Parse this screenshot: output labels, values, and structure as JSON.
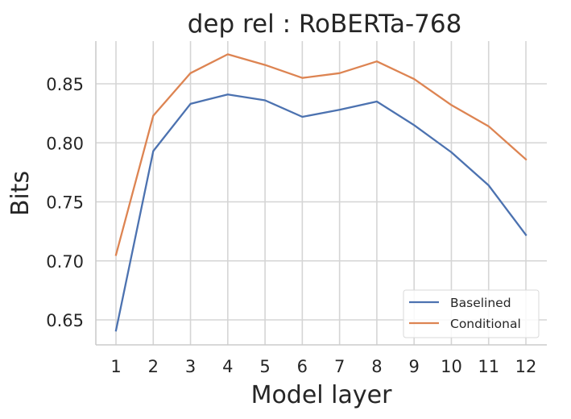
{
  "chart_data": {
    "type": "line",
    "title": "dep rel : RoBERTa-768",
    "xlabel": "Model layer",
    "ylabel": "Bits",
    "x": [
      1,
      2,
      3,
      4,
      5,
      6,
      7,
      8,
      9,
      10,
      11,
      12
    ],
    "xticks": [
      "1",
      "2",
      "3",
      "4",
      "5",
      "6",
      "7",
      "8",
      "9",
      "10",
      "11",
      "12"
    ],
    "yticks": [
      "0.65",
      "0.70",
      "0.75",
      "0.80",
      "0.85"
    ],
    "ytick_values": [
      0.65,
      0.7,
      0.75,
      0.8,
      0.85
    ],
    "ylim": [
      0.629,
      0.896
    ],
    "xlim": [
      0.45,
      12.55
    ],
    "grid": true,
    "legend_position": "lower right",
    "series": [
      {
        "name": "Baselined",
        "color": "#4c72b0",
        "values": [
          0.641,
          0.793,
          0.833,
          0.841,
          0.836,
          0.822,
          0.828,
          0.835,
          0.815,
          0.792,
          0.764,
          0.722
        ]
      },
      {
        "name": "Conditional",
        "color": "#dd8452",
        "values": [
          0.705,
          0.823,
          0.859,
          0.875,
          0.866,
          0.855,
          0.859,
          0.869,
          0.854,
          0.832,
          0.814,
          0.786
        ]
      }
    ]
  },
  "legend": {
    "items": [
      {
        "label": "Baselined",
        "color": "#4c72b0"
      },
      {
        "label": "Conditional",
        "color": "#dd8452"
      }
    ]
  }
}
